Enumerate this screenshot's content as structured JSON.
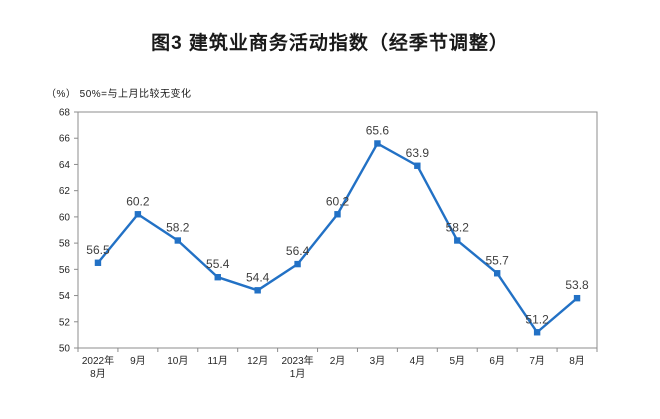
{
  "chart_data": {
    "type": "line",
    "title": "图3  建筑业商务活动指数（经季节调整）",
    "unit_note": "（%）  50%=与上月比较无变化",
    "categories": [
      [
        "2022年",
        "8月"
      ],
      [
        "9月"
      ],
      [
        "10月"
      ],
      [
        "11月"
      ],
      [
        "12月"
      ],
      [
        "2023年",
        "1月"
      ],
      [
        "2月"
      ],
      [
        "3月"
      ],
      [
        "4月"
      ],
      [
        "5月"
      ],
      [
        "6月"
      ],
      [
        "7月"
      ],
      [
        "8月"
      ]
    ],
    "series": [
      {
        "name": "建筑业商务活动指数",
        "values": [
          56.5,
          60.2,
          58.2,
          55.4,
          54.4,
          56.4,
          60.2,
          65.6,
          63.9,
          58.2,
          55.7,
          51.2,
          53.8
        ]
      }
    ],
    "ylim": [
      50,
      68
    ],
    "ytick_step": 2,
    "grid": false,
    "legend": false,
    "marker": "square",
    "colors": {
      "line": "#2271c5",
      "marker": "#2271c5",
      "data_label": "#3f3f3f",
      "axis_text": "#262626",
      "axis_line": "#8c8c8c",
      "title": "#1a1a1a"
    }
  }
}
